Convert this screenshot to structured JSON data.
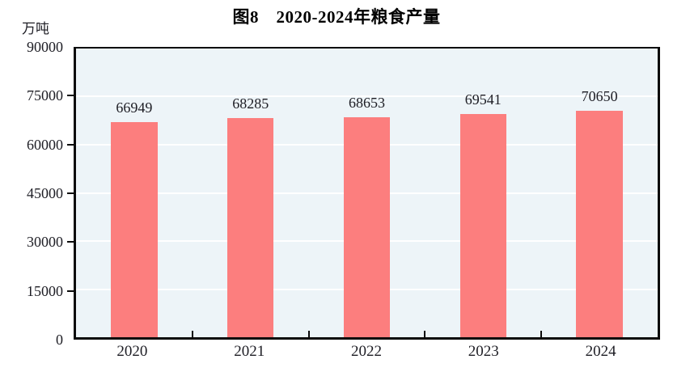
{
  "figure": {
    "title": "图8　2020-2024年粮食产量",
    "unit_label": "万吨"
  },
  "chart_data": {
    "type": "bar",
    "title": "图8　2020-2024年粮食产量",
    "categories": [
      "2020",
      "2021",
      "2022",
      "2023",
      "2024"
    ],
    "values": [
      66949,
      68285,
      68653,
      69541,
      70650
    ],
    "xlabel": "",
    "ylabel": "万吨",
    "ylim": [
      0,
      90000
    ],
    "yticks": [
      0,
      15000,
      30000,
      45000,
      60000,
      75000,
      90000
    ],
    "grid": true,
    "legend_position": "none",
    "colors": {
      "bar": "#fc7e7e",
      "plot_background": "#edf4f8",
      "gridline": "#ffffff",
      "axis": "#0b0b0b",
      "text": "#1d1d24"
    }
  }
}
